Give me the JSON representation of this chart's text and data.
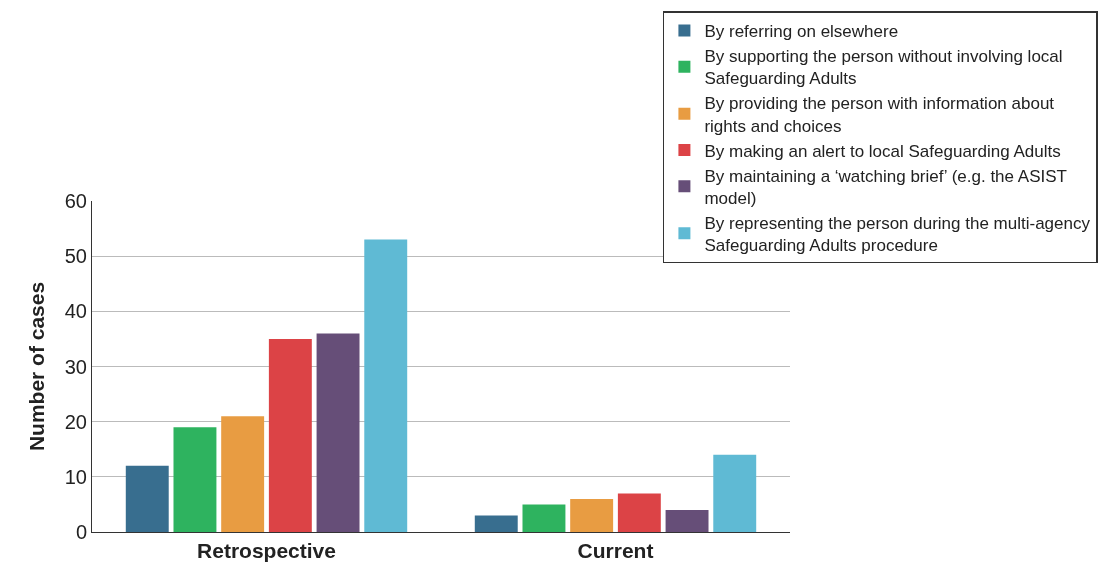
{
  "chart_data": {
    "type": "bar",
    "ylabel": "Number of cases",
    "categories": [
      "Retrospective",
      "Current"
    ],
    "series": [
      {
        "name": "By referring on elsewhere",
        "color": "#386e8f",
        "values": [
          12,
          3
        ]
      },
      {
        "name": "By supporting the person without involving local Safeguarding Adults",
        "color": "#2eb35f",
        "values": [
          19,
          5
        ]
      },
      {
        "name": "By providing the person with information about rights and choices",
        "color": "#e89c42",
        "values": [
          21,
          6
        ]
      },
      {
        "name": "By making an alert to local Safeguarding Adults",
        "color": "#dc4346",
        "values": [
          35,
          7
        ]
      },
      {
        "name": "By maintaining a ‘watching brief’ (e.g. the ASIST model)",
        "color": "#664e78",
        "values": [
          36,
          4
        ]
      },
      {
        "name": "By representing the person during the multi-agency Safeguarding Adults procedure",
        "color": "#5fbad4",
        "values": [
          53,
          14
        ]
      }
    ],
    "ylim": [
      0,
      60
    ],
    "yticks": [
      0,
      10,
      20,
      30,
      40,
      50,
      60
    ],
    "grid": "y",
    "legend": "top right"
  }
}
